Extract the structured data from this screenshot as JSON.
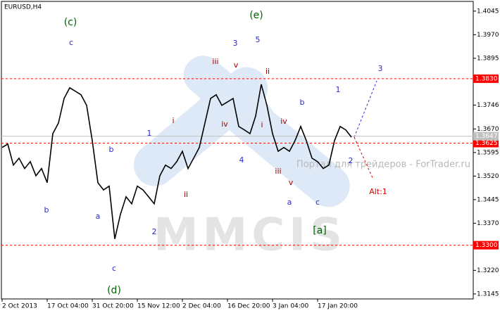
{
  "chart_data": {
    "type": "line",
    "title": "EURUSD,H4",
    "color": "#000000",
    "categories": [
      "2 Oct 2013",
      null,
      null,
      null,
      null,
      null,
      null,
      null,
      "17 Oct 04:00",
      null,
      null,
      null,
      null,
      null,
      null,
      null,
      "31 Oct 20:00",
      null,
      null,
      null,
      null,
      null,
      null,
      null,
      "15 Nov 12:00",
      null,
      null,
      null,
      null,
      null,
      null,
      null,
      "2 Dec 04:00",
      null,
      null,
      null,
      null,
      null,
      null,
      null,
      "16 Dec 20:00",
      null,
      null,
      null,
      null,
      null,
      null,
      null,
      "3 Jan 04:00",
      null,
      null,
      null,
      null,
      null,
      null,
      null,
      "17 Jan 20:00",
      null,
      null,
      null,
      null,
      null,
      null
    ],
    "values": [
      1.3611,
      1.3622,
      1.3555,
      1.3577,
      1.3544,
      1.3566,
      1.3521,
      1.3544,
      1.3499,
      1.3655,
      1.3689,
      1.3767,
      1.3801,
      1.379,
      1.3779,
      1.3745,
      1.3633,
      1.3499,
      1.3476,
      1.3488,
      1.332,
      1.3398,
      1.3454,
      1.3432,
      1.3488,
      1.3476,
      1.3454,
      1.3432,
      1.3521,
      1.3555,
      1.3544,
      1.3566,
      1.3599,
      1.3544,
      1.3577,
      1.3611,
      1.3689,
      1.3767,
      1.3779,
      1.3745,
      1.3756,
      1.3767,
      1.3678,
      1.3667,
      1.3655,
      1.3711,
      1.3812,
      1.3745,
      1.3655,
      1.3599,
      1.3611,
      1.3599,
      1.3633,
      1.3678,
      1.3633,
      1.3577,
      1.3566,
      1.3544,
      1.3555,
      1.3633,
      1.3678,
      1.3667,
      1.3644
    ],
    "ylim": [
      1.3129,
      1.4076
    ],
    "yticks": [
      1.4045,
      {
        "value": 1.397,
        "label": "1.3970"
      },
      1.3895,
      1.3746,
      {
        "value": 1.367,
        "label": "1.3670"
      },
      1.3595,
      {
        "value": 1.352,
        "label": "1.3520"
      },
      1.3445,
      {
        "value": 1.337,
        "label": "1.3370"
      },
      {
        "value": 1.322,
        "label": "1.3220"
      },
      1.3145
    ],
    "levels": [
      {
        "value": 1.383,
        "label": "1.3830"
      },
      1.3625,
      {
        "value": 1.33,
        "label": "1.3300"
      }
    ],
    "level_color": "#ff0000",
    "current_price": 1.3647,
    "annotations": [
      "(c)",
      "c",
      "(e)",
      "5",
      "3",
      "iii",
      "v",
      "ii",
      "1",
      "3",
      "b",
      "iv",
      "iv",
      "i",
      "i",
      "1",
      "b",
      "4",
      "iii",
      "2",
      "v",
      "ii",
      "Alt:1",
      "a",
      "c",
      "b",
      "a",
      "2",
      "[a]",
      "c",
      "(d)"
    ],
    "watermark": "MMCIS",
    "source_note": "Портал для трейдеров - ForTrader.ru"
  }
}
